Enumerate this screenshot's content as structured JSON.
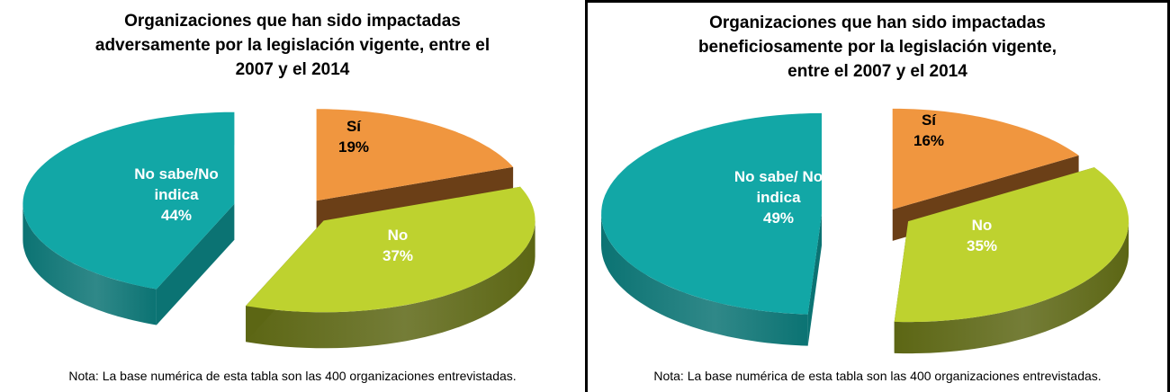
{
  "charts": [
    {
      "title_lines": [
        "Organizaciones que han sido impactadas",
        "adversamente por la legislación vigente, entre el",
        "2007 y el 2014"
      ],
      "note": "Nota: La base numérica de esta tabla son las 400 organizaciones entrevistadas.",
      "slices": [
        {
          "label_lines": [
            "Sí",
            "19%"
          ],
          "value": 19,
          "color": "#F0963F",
          "side_color": "#6B3F17"
        },
        {
          "label_lines": [
            "No",
            "37%"
          ],
          "value": 37,
          "color": "#BED22F",
          "side_color": "#5C6614"
        },
        {
          "label_lines": [
            "No sabe/No",
            "indica",
            "44%"
          ],
          "value": 44,
          "color": "#12A7A6",
          "side_color": "#0B7373"
        }
      ]
    },
    {
      "title_lines": [
        "Organizaciones que han sido impactadas",
        "beneficiosamente por la legislación vigente,",
        "entre el 2007 y el 2014"
      ],
      "note": "Nota: La base numérica de esta tabla son las 400 organizaciones entrevistadas.",
      "slices": [
        {
          "label_lines": [
            "Sí",
            "16%"
          ],
          "value": 16,
          "color": "#F0963F",
          "side_color": "#6B3F17"
        },
        {
          "label_lines": [
            "No",
            "35%"
          ],
          "value": 35,
          "color": "#BED22F",
          "side_color": "#5C6614"
        },
        {
          "label_lines": [
            "No sabe/ No",
            "indica",
            "49%"
          ],
          "value": 49,
          "color": "#12A7A6",
          "side_color": "#0B7373"
        }
      ]
    }
  ],
  "chart_data": [
    {
      "type": "pie",
      "title": "Organizaciones que han sido impactadas adversamente por la legislación vigente, entre el 2007 y el 2014",
      "categories": [
        "Sí",
        "No",
        "No sabe/No indica"
      ],
      "values": [
        19,
        37,
        44
      ],
      "unit": "%"
    },
    {
      "type": "pie",
      "title": "Organizaciones que han sido impactadas beneficiosamente por la legislación vigente, entre el 2007 y el 2014",
      "categories": [
        "Sí",
        "No",
        "No sabe/ No indica"
      ],
      "values": [
        16,
        35,
        49
      ],
      "unit": "%"
    }
  ]
}
